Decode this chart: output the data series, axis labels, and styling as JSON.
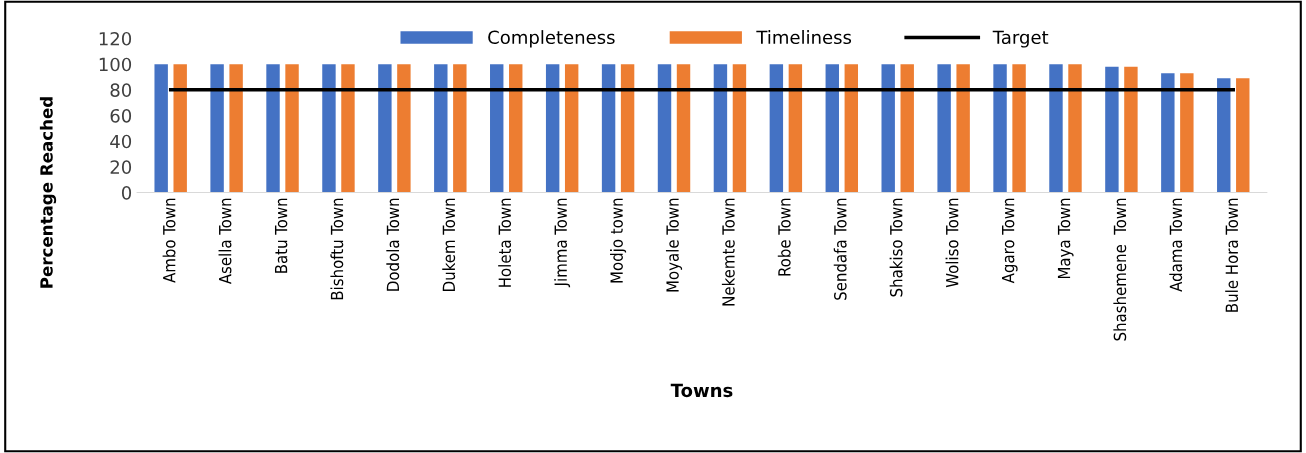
{
  "chart_data": {
    "type": "bar",
    "xlabel": "Towns",
    "ylabel": "Percentage Reached",
    "categories": [
      "Ambo Town",
      "Asella Town",
      "Batu Town",
      "Bishoftu Town",
      "Dodola Town",
      "Dukem Town",
      "Holeta Town",
      "Jimma Town",
      "Modjo town",
      "Moyale Town",
      "Nekemte Town",
      "Robe Town",
      "Sendafa Town",
      "Shakiso Town",
      "Woliso Town",
      "Agaro Town",
      "Maya Town",
      "Shashemene  Town",
      "Adama Town",
      "Bule Hora Town"
    ],
    "series": [
      {
        "name": "Completeness",
        "color": "#4472c4",
        "values": [
          100,
          100,
          100,
          100,
          100,
          100,
          100,
          100,
          100,
          100,
          100,
          100,
          100,
          100,
          100,
          100,
          100,
          98,
          93,
          89
        ]
      },
      {
        "name": "Timeliness",
        "color": "#ed7d31",
        "values": [
          100,
          100,
          100,
          100,
          100,
          100,
          100,
          100,
          100,
          100,
          100,
          100,
          100,
          100,
          100,
          100,
          100,
          98,
          93,
          89
        ]
      },
      {
        "name": "Target",
        "type": "line",
        "color": "#000000",
        "values": [
          80,
          80,
          80,
          80,
          80,
          80,
          80,
          80,
          80,
          80,
          80,
          80,
          80,
          80,
          80,
          80,
          80,
          80,
          80,
          80
        ]
      }
    ],
    "ylim": [
      0,
      120
    ],
    "yticks": [
      0,
      20,
      40,
      60,
      80,
      100,
      120
    ],
    "grid": false,
    "legend": "top"
  }
}
